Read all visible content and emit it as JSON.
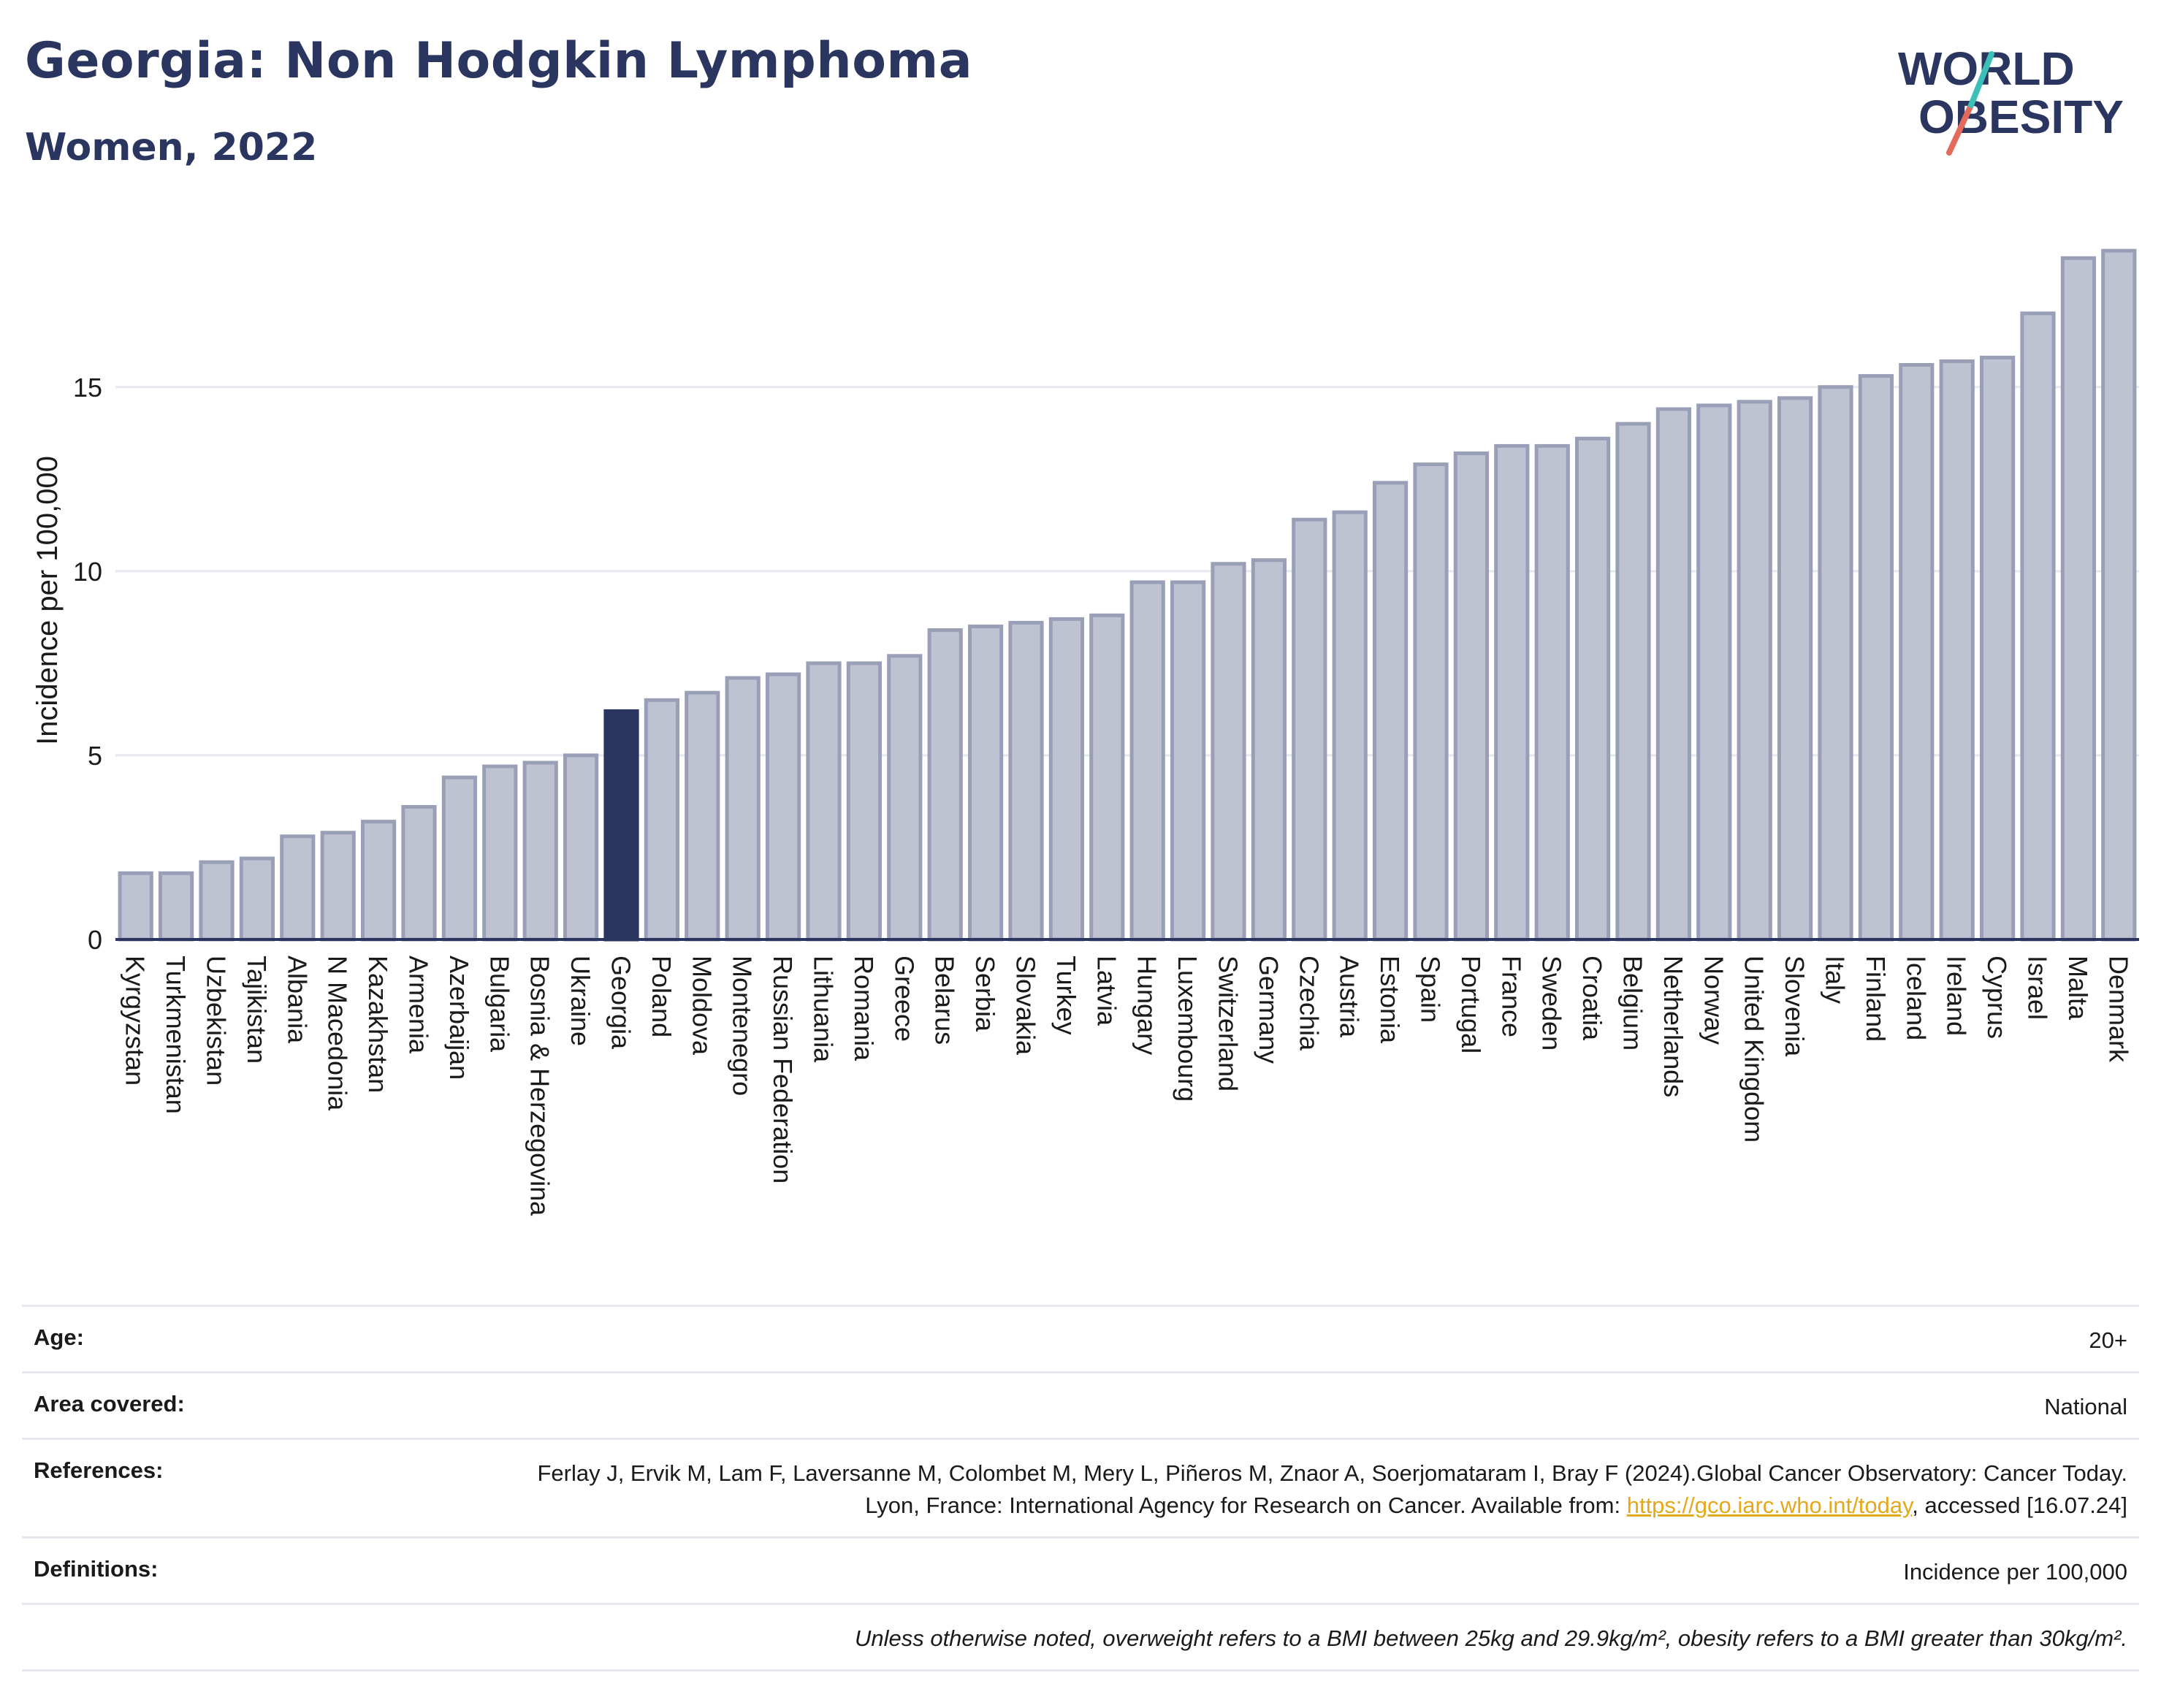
{
  "header": {
    "title": "Georgia: Non Hodgkin Lymphoma",
    "subtitle": "Women, 2022",
    "logo_line1": "WORLD",
    "logo_line2": "OBESITY"
  },
  "chart_data": {
    "type": "bar",
    "title": "Georgia: Non Hodgkin Lymphoma",
    "subtitle": "Women, 2022",
    "xlabel": "",
    "ylabel": "Incidence per 100,000",
    "ylim": [
      0,
      19.2
    ],
    "yticks": [
      0,
      5,
      10,
      15
    ],
    "grid": true,
    "highlight": "Georgia",
    "colors": {
      "bar": "#bfc3d1",
      "bar_edge": "#9a9fb8",
      "highlight": "#2b3660",
      "grid": "#e6e8ee"
    },
    "categories": [
      "Kyrgyzstan",
      "Turkmenistan",
      "Uzbekistan",
      "Tajikistan",
      "Albania",
      "N Macedonia",
      "Kazakhstan",
      "Armenia",
      "Azerbaijan",
      "Bulgaria",
      "Bosnia & Herzegovina",
      "Ukraine",
      "Georgia",
      "Poland",
      "Moldova",
      "Montenegro",
      "Russian Federation",
      "Lithuania",
      "Romania",
      "Greece",
      "Belarus",
      "Serbia",
      "Slovakia",
      "Turkey",
      "Latvia",
      "Hungary",
      "Luxembourg",
      "Switzerland",
      "Germany",
      "Czechia",
      "Austria",
      "Estonia",
      "Spain",
      "Portugal",
      "France",
      "Sweden",
      "Croatia",
      "Belgium",
      "Netherlands",
      "Norway",
      "United Kingdom",
      "Slovenia",
      "Italy",
      "Finland",
      "Iceland",
      "Ireland",
      "Cyprus",
      "Israel",
      "Malta",
      "Denmark"
    ],
    "values": [
      1.8,
      1.8,
      2.1,
      2.2,
      2.8,
      2.9,
      3.2,
      3.6,
      4.4,
      4.7,
      4.8,
      5.0,
      6.2,
      6.5,
      6.7,
      7.1,
      7.2,
      7.5,
      7.5,
      7.7,
      8.4,
      8.5,
      8.6,
      8.7,
      8.8,
      9.7,
      9.7,
      10.2,
      10.3,
      11.4,
      11.6,
      12.4,
      12.9,
      13.2,
      13.4,
      13.4,
      13.6,
      14.0,
      14.4,
      14.5,
      14.6,
      14.7,
      15.0,
      15.3,
      15.6,
      15.7,
      15.8,
      17.0,
      18.5,
      18.7
    ]
  },
  "meta": {
    "age_label": "Age:",
    "age_value": "20+",
    "area_label": "Area covered:",
    "area_value": "National",
    "references_label": "References:",
    "references_text": "Ferlay J, Ervik M, Lam F, Laversanne M, Colombet M, Mery L, Piñeros M, Znaor A, Soerjomataram I, Bray F (2024).Global Cancer Observatory: Cancer Today. Lyon, France: International Agency for Research on Cancer. Available from: ",
    "references_link": "https://gco.iarc.who.int/today",
    "references_suffix": ", accessed [16.07.24]",
    "definitions_label": "Definitions:",
    "definitions_value": "Incidence per 100,000",
    "note": "Unless otherwise noted, overweight refers to a BMI between 25kg and 29.9kg/m², obesity refers to a BMI greater than 30kg/m²."
  }
}
